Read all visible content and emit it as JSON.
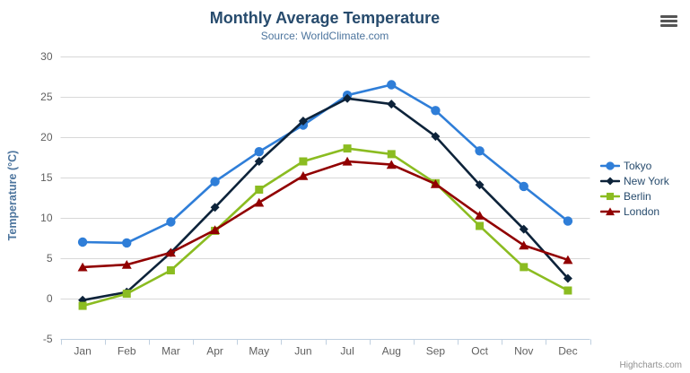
{
  "chart_data": {
    "type": "line",
    "title": "Monthly Average Temperature",
    "subtitle": "Source: WorldClimate.com",
    "xlabel": "",
    "ylabel": "Temperature (°C)",
    "categories": [
      "Jan",
      "Feb",
      "Mar",
      "Apr",
      "May",
      "Jun",
      "Jul",
      "Aug",
      "Sep",
      "Oct",
      "Nov",
      "Dec"
    ],
    "ylim": [
      -5,
      30
    ],
    "yticks": [
      -5,
      0,
      5,
      10,
      15,
      20,
      25,
      30
    ],
    "grid": true,
    "legend_position": "right",
    "series": [
      {
        "name": "Tokyo",
        "color": "#2f7ed8",
        "marker": "circle",
        "values": [
          7.0,
          6.9,
          9.5,
          14.5,
          18.2,
          21.5,
          25.2,
          26.5,
          23.3,
          18.3,
          13.9,
          9.6
        ]
      },
      {
        "name": "New York",
        "color": "#0d233a",
        "marker": "diamond",
        "values": [
          -0.2,
          0.8,
          5.7,
          11.3,
          17.0,
          22.0,
          24.8,
          24.1,
          20.1,
          14.1,
          8.6,
          2.5
        ]
      },
      {
        "name": "Berlin",
        "color": "#8bbc21",
        "marker": "square",
        "values": [
          -0.9,
          0.6,
          3.5,
          8.4,
          13.5,
          17.0,
          18.6,
          17.9,
          14.3,
          9.0,
          3.9,
          1.0
        ]
      },
      {
        "name": "London",
        "color": "#910000",
        "marker": "triangle",
        "values": [
          3.9,
          4.2,
          5.7,
          8.5,
          11.9,
          15.2,
          17.0,
          16.6,
          14.2,
          10.3,
          6.6,
          4.8
        ]
      }
    ]
  },
  "credits": {
    "text": "Highcharts.com"
  },
  "icons": {
    "export_menu": "hamburger-menu-icon"
  },
  "colors": {
    "title": "#274b6d",
    "subtitle": "#4d759e",
    "axis_title": "#4d759e",
    "tick_label": "#606060",
    "gridline": "#d8d8d8",
    "axis_line": "#c0d0e0",
    "legend_text": "#274b6d",
    "credit": "#909090"
  }
}
